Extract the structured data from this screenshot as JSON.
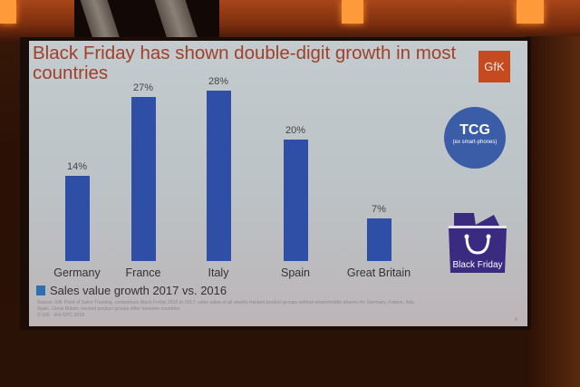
{
  "slide": {
    "title": "Black Friday has shown double-digit growth in most countries",
    "logo_text": "GfK",
    "badge": {
      "title": "TCG",
      "subtitle": "(ex smart-phones)"
    },
    "bag_label": "Black Friday",
    "legend_label": "Sales value growth 2017 vs. 2016",
    "footnote_line1": "Source: GfK Point of Sales Tracking, comparison Black Friday 2016 to 2017; sales value of all weekly tracked product groups without smart/mobile phones for Germany, France, Italy,",
    "footnote_line2": "Spain, Great Britain; tracked product groups differ between countries",
    "footnote_line3": "© GfK · IFA GPC 2018",
    "page_number": "9"
  },
  "colors": {
    "bar": "#2f4fa6",
    "title": "#a0402a",
    "logo": "#c54a20",
    "badge": "#3b5ca7",
    "bag": "#3a2a80"
  },
  "chart_data": {
    "type": "bar",
    "title": "Black Friday has shown double-digit growth in most countries",
    "categories": [
      "Germany",
      "France",
      "Italy",
      "Spain",
      "Great Britain"
    ],
    "values": [
      14,
      27,
      28,
      20,
      7
    ],
    "value_labels": [
      "14%",
      "27%",
      "28%",
      "20%",
      "7%"
    ],
    "series": [
      {
        "name": "Sales value growth 2017 vs. 2016",
        "values": [
          14,
          27,
          28,
          20,
          7
        ]
      }
    ],
    "xlabel": "",
    "ylabel": "",
    "unit": "%",
    "ylim": [
      0,
      30
    ],
    "grid": false,
    "legend_position": "bottom-left"
  }
}
